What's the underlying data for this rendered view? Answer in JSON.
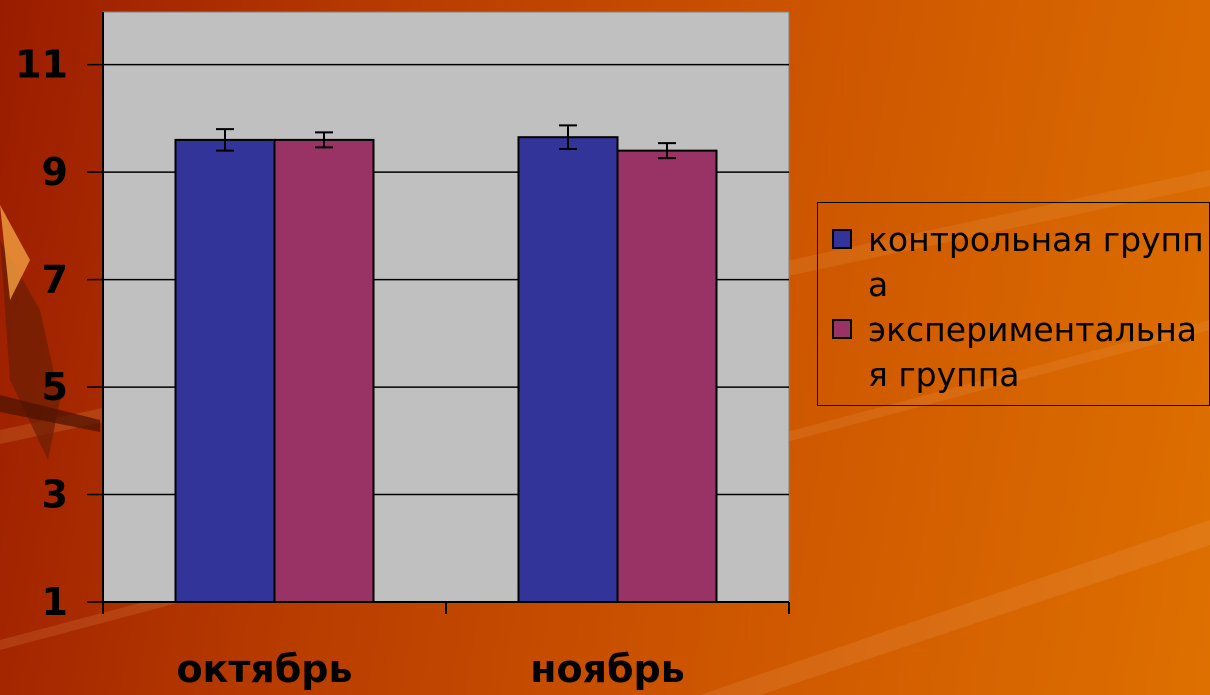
{
  "chart_data": {
    "type": "bar",
    "categories": [
      "октябрь",
      "ноябрь"
    ],
    "series": [
      {
        "name": "контрольная группа",
        "values": [
          9.6,
          9.65
        ],
        "errors": [
          0.2,
          0.22
        ]
      },
      {
        "name": "экспериментальная группа",
        "values": [
          9.6,
          9.4
        ],
        "errors": [
          0.14,
          0.14
        ]
      }
    ],
    "yticks": [
      1,
      3,
      5,
      7,
      9,
      11
    ],
    "ylim": [
      1,
      11.98
    ],
    "grid": true,
    "legend_position": "right",
    "colors": {
      "series": [
        "#33349a",
        "#993366"
      ],
      "plot_background": "#c0c0c0",
      "axis": "#000000"
    }
  }
}
